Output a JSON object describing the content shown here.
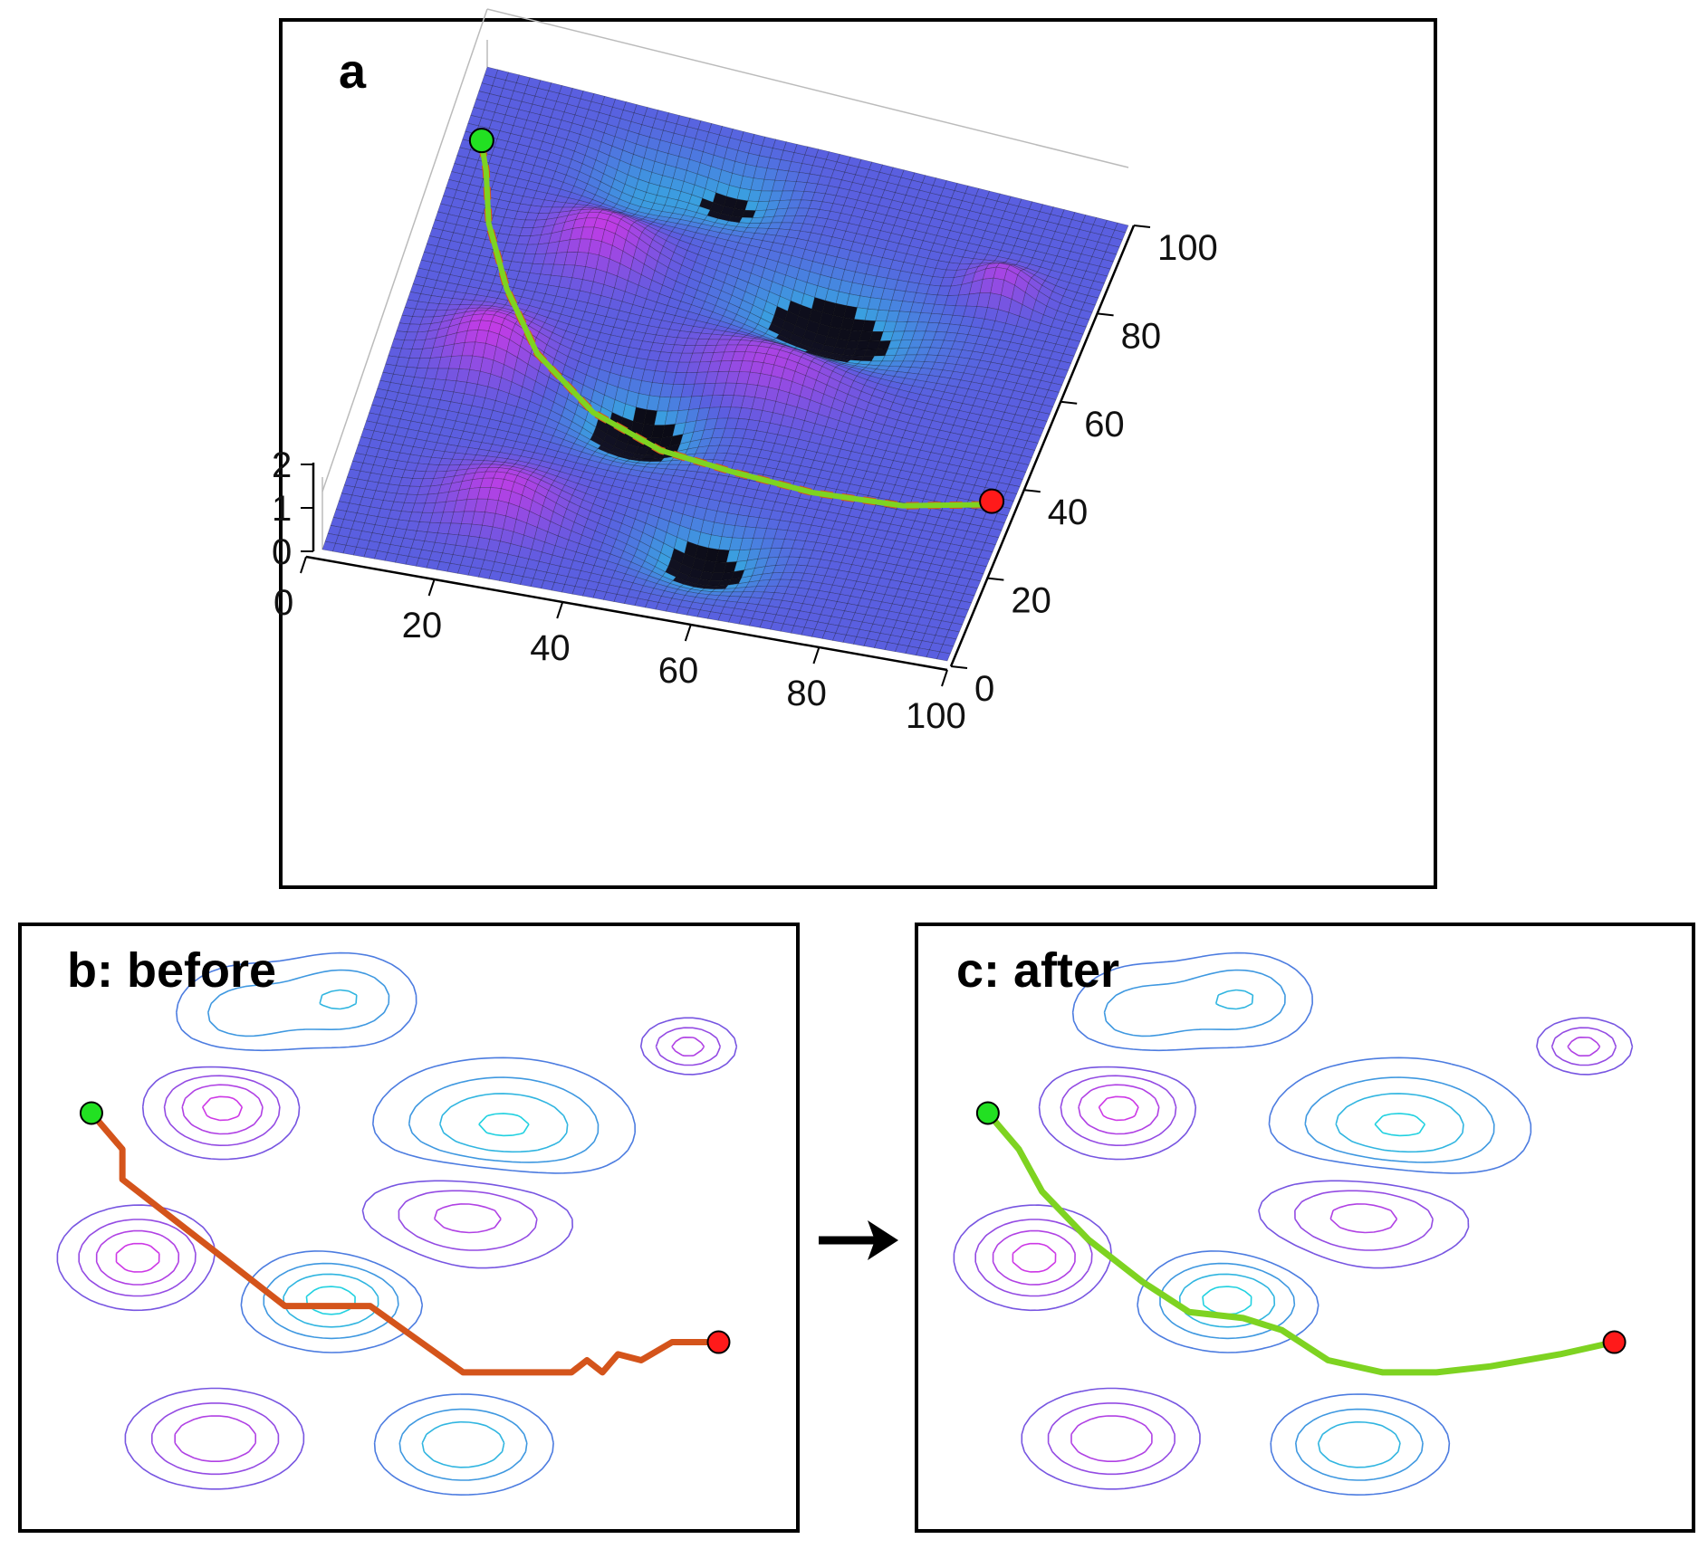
{
  "figure": {
    "panel_a": {
      "label": "a"
    },
    "panel_b": {
      "label": "b: before",
      "path_color": "#d4541b"
    },
    "panel_c": {
      "label": "c: after",
      "path_color": "#7ed321"
    },
    "arrow": "→"
  },
  "colors": {
    "surface_low": "#1fd6e0",
    "surface_mid": "#5a5fe0",
    "surface_high": "#d236e6",
    "start_marker": "#22e022",
    "end_marker": "#ff1a1a",
    "raw_path": "#d4541b",
    "smooth_path": "#7ed321"
  },
  "chart_data": [
    {
      "type": "surface",
      "panel": "a",
      "x_ticks": [
        "0",
        "20",
        "40",
        "60",
        "80",
        "100"
      ],
      "y_ticks": [
        "0",
        "20",
        "40",
        "60",
        "80",
        "100"
      ],
      "z_ticks": [
        "0",
        "1",
        "2"
      ],
      "xlim": [
        0,
        100
      ],
      "ylim": [
        0,
        100
      ],
      "zlim": [
        0,
        2
      ],
      "start_point": [
        3,
        85
      ],
      "end_point": [
        97,
        38
      ]
    },
    {
      "type": "contour",
      "panel": "b",
      "xlim": [
        0,
        100
      ],
      "ylim": [
        0,
        100
      ],
      "path": [
        [
          9,
          69
        ],
        [
          13,
          63
        ],
        [
          13,
          58
        ],
        [
          34,
          37
        ],
        [
          45,
          37
        ],
        [
          57,
          26
        ],
        [
          71,
          26
        ],
        [
          73,
          28
        ],
        [
          75,
          26
        ],
        [
          77,
          29
        ],
        [
          80,
          28
        ],
        [
          84,
          31
        ],
        [
          86,
          31
        ],
        [
          90,
          31
        ]
      ],
      "start_point": [
        9,
        69
      ],
      "end_point": [
        90,
        31
      ]
    },
    {
      "type": "contour",
      "panel": "c",
      "xlim": [
        0,
        100
      ],
      "ylim": [
        0,
        100
      ],
      "path": [
        [
          9,
          69
        ],
        [
          13,
          63
        ],
        [
          16,
          56
        ],
        [
          22,
          48
        ],
        [
          29,
          41
        ],
        [
          35,
          36
        ],
        [
          42,
          35
        ],
        [
          47,
          33
        ],
        [
          53,
          28
        ],
        [
          60,
          26
        ],
        [
          67,
          26
        ],
        [
          74,
          27
        ],
        [
          83,
          29
        ],
        [
          90,
          31
        ]
      ],
      "start_point": [
        9,
        69
      ],
      "end_point": [
        90,
        31
      ]
    }
  ]
}
